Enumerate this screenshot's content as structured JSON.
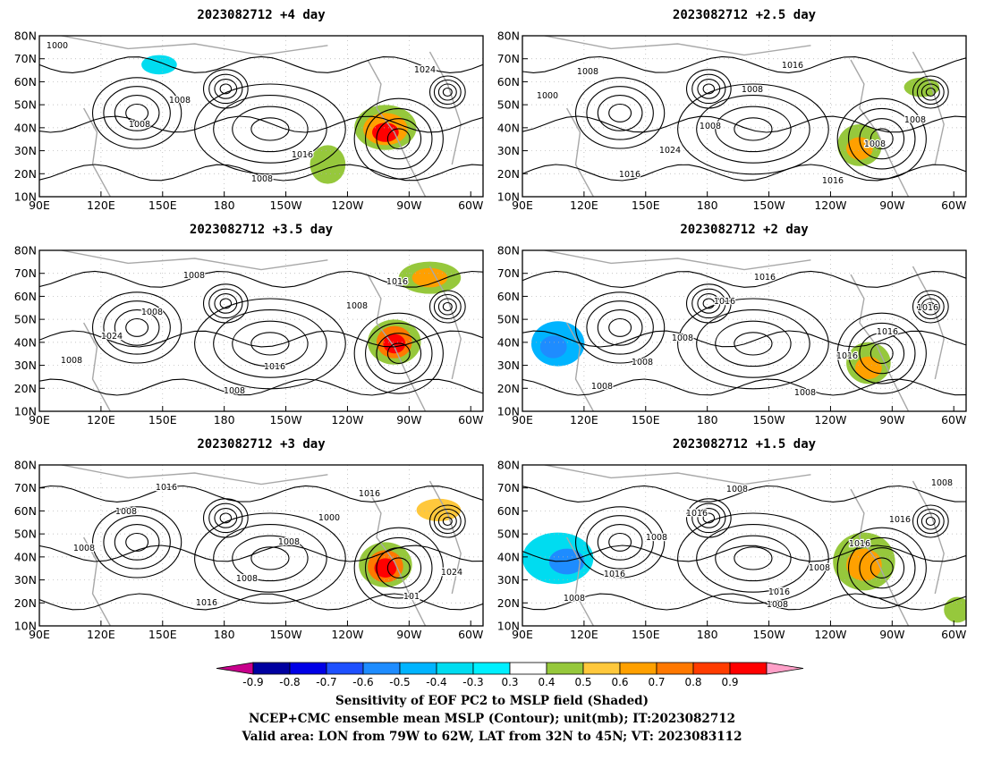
{
  "panels": [
    {
      "title": "2023082712  +4 day",
      "contour_labels": [
        "1000",
        "1008",
        "1016",
        "1024",
        "1008",
        "1008"
      ]
    },
    {
      "title": "2023082712  +2.5 day",
      "contour_labels": [
        "1008",
        "1008",
        "1016",
        "1000",
        "1024",
        "1016",
        "1008",
        "1016",
        "1008",
        "1008"
      ]
    },
    {
      "title": "2023082712  +3.5 day",
      "contour_labels": [
        "1008",
        "1016",
        "1016",
        "1024",
        "1008",
        "1008",
        "1008",
        "1008"
      ]
    },
    {
      "title": "2023082712  +2 day",
      "contour_labels": [
        "1008",
        "1008",
        "1016",
        "1008",
        "1016",
        "1016",
        "1008",
        "1016",
        "1016"
      ]
    },
    {
      "title": "2023082712  +3 day",
      "contour_labels": [
        "1008",
        "1016",
        "1008",
        "1016",
        "1000",
        "1024",
        "1016",
        "1008",
        "101",
        "1008"
      ]
    },
    {
      "title": "2023082712  +1.5 day",
      "contour_labels": [
        "1008",
        "1016",
        "1016",
        "1008",
        "1016",
        "1008",
        "1016",
        "1008",
        "1008",
        "1008",
        "1016"
      ]
    }
  ],
  "axes": {
    "x_ticks": [
      "90E",
      "120E",
      "150E",
      "180",
      "150W",
      "120W",
      "90W",
      "60W"
    ],
    "y_ticks": [
      "80N",
      "70N",
      "60N",
      "50N",
      "40N",
      "30N",
      "20N",
      "10N"
    ]
  },
  "colorbar": {
    "ticks": [
      "-0.9",
      "-0.8",
      "-0.7",
      "-0.6",
      "-0.5",
      "-0.4",
      "-0.3",
      "0.3",
      "0.4",
      "0.5",
      "0.6",
      "0.7",
      "0.8",
      "0.9"
    ],
    "colors": [
      "#c8008c",
      "#0000a0",
      "#0000e6",
      "#1e50ff",
      "#1e8cff",
      "#00b4ff",
      "#00dcf0",
      "#00f0ff",
      "#ffffff",
      "#96c83c",
      "#ffc83c",
      "#ffa000",
      "#ff7800",
      "#ff3c00",
      "#ff0000",
      "#ffa0c8"
    ]
  },
  "footer": {
    "line1": "Sensitivity of EOF PC2 to MSLP field (Shaded)",
    "line2": "NCEP+CMC ensemble mean MSLP (Contour); unit(mb); IT:2023082712",
    "line3": "Valid area: LON from 79W to 62W, LAT from 32N to 45N; VT: 2023083112"
  }
}
